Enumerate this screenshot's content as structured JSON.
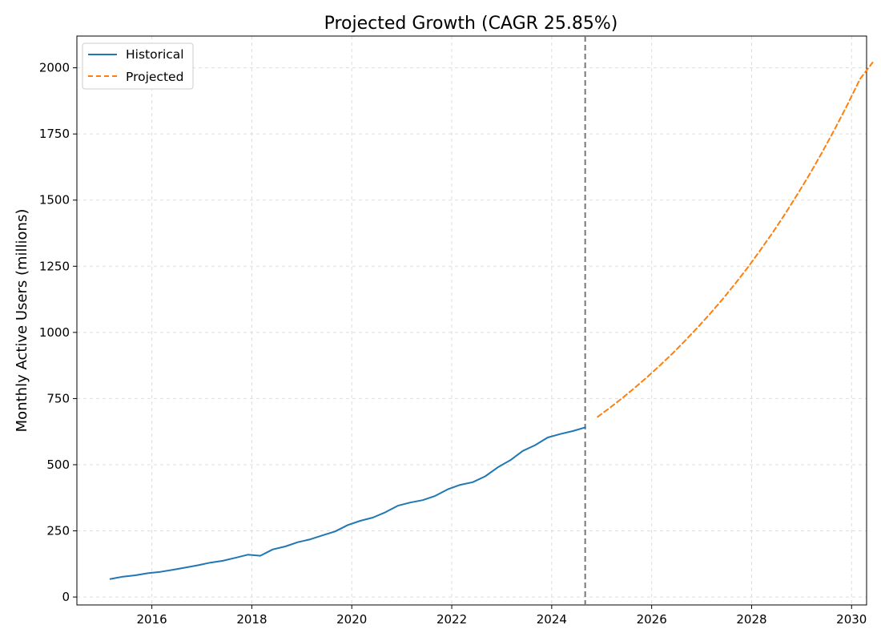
{
  "chart_data": {
    "type": "line",
    "title": "Projected Growth (CAGR 25.85%)",
    "xlabel": "",
    "ylabel": "Monthly Active Users (millions)",
    "xlim": [
      2014.5,
      2030.3
    ],
    "ylim": [
      -30,
      2120
    ],
    "x_ticks": [
      2016,
      2018,
      2020,
      2022,
      2024,
      2026,
      2028,
      2030
    ],
    "y_ticks": [
      0,
      250,
      500,
      750,
      1000,
      1250,
      1500,
      1750,
      2000
    ],
    "x_tick_labels": [
      "2016",
      "2018",
      "2020",
      "2022",
      "2024",
      "2026",
      "2028",
      "2030"
    ],
    "y_tick_labels": [
      "0",
      "250",
      "500",
      "750",
      "1000",
      "1250",
      "1500",
      "1750",
      "2000"
    ],
    "grid": true,
    "legend_position": "top-left",
    "legend": [
      "Historical",
      "Projected"
    ],
    "vertical_marker": {
      "x": 2024.67,
      "style": "dashed",
      "color": "#777777"
    },
    "series": [
      {
        "name": "Historical",
        "style": "solid",
        "color": "#1f77b4",
        "points": [
          [
            2015.17,
            68
          ],
          [
            2015.42,
            77
          ],
          [
            2015.67,
            82
          ],
          [
            2015.92,
            90
          ],
          [
            2016.17,
            95
          ],
          [
            2016.42,
            103
          ],
          [
            2016.67,
            111
          ],
          [
            2016.92,
            120
          ],
          [
            2017.17,
            130
          ],
          [
            2017.42,
            137
          ],
          [
            2017.67,
            148
          ],
          [
            2017.92,
            160
          ],
          [
            2018.17,
            156
          ],
          [
            2018.42,
            180
          ],
          [
            2018.67,
            191
          ],
          [
            2018.92,
            207
          ],
          [
            2019.17,
            218
          ],
          [
            2019.42,
            233
          ],
          [
            2019.67,
            248
          ],
          [
            2019.92,
            272
          ],
          [
            2020.17,
            288
          ],
          [
            2020.42,
            300
          ],
          [
            2020.67,
            320
          ],
          [
            2020.92,
            345
          ],
          [
            2021.17,
            357
          ],
          [
            2021.42,
            366
          ],
          [
            2021.67,
            382
          ],
          [
            2021.92,
            407
          ],
          [
            2022.17,
            424
          ],
          [
            2022.42,
            434
          ],
          [
            2022.67,
            456
          ],
          [
            2022.92,
            490
          ],
          [
            2023.17,
            517
          ],
          [
            2023.42,
            552
          ],
          [
            2023.67,
            574
          ],
          [
            2023.92,
            603
          ],
          [
            2024.17,
            616
          ],
          [
            2024.42,
            627
          ],
          [
            2024.67,
            641
          ]
        ]
      },
      {
        "name": "Projected",
        "style": "dashed",
        "color": "#ff7f0e",
        "points": [
          [
            2024.92,
            681
          ],
          [
            2025.17,
            716
          ],
          [
            2025.42,
            753
          ],
          [
            2025.67,
            792
          ],
          [
            2025.92,
            833
          ],
          [
            2026.17,
            876
          ],
          [
            2026.42,
            921
          ],
          [
            2026.67,
            969
          ],
          [
            2026.92,
            1019
          ],
          [
            2027.17,
            1071
          ],
          [
            2027.42,
            1126
          ],
          [
            2027.67,
            1184
          ],
          [
            2027.92,
            1245
          ],
          [
            2028.17,
            1310
          ],
          [
            2028.42,
            1377
          ],
          [
            2028.67,
            1448
          ],
          [
            2028.92,
            1523
          ],
          [
            2029.17,
            1601
          ],
          [
            2029.42,
            1684
          ],
          [
            2029.67,
            1771
          ],
          [
            2029.92,
            1862
          ],
          [
            2030.17,
            1958
          ],
          [
            2030.42,
            2020
          ]
        ]
      }
    ]
  }
}
